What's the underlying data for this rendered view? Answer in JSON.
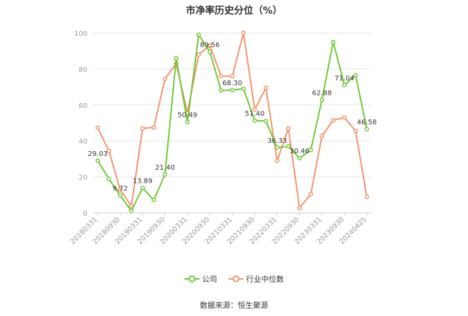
{
  "chart_data": {
    "type": "line",
    "title": "市净率历史分位（%）",
    "ylim": [
      0,
      100
    ],
    "yticks": [
      "0",
      "20",
      "40",
      "60",
      "80",
      "100"
    ],
    "grid": true,
    "legend_position": "bottom-center",
    "x": [
      "20180331",
      "",
      "20180930",
      "",
      "20190331",
      "",
      "20190930",
      "",
      "20200331",
      "",
      "20200930",
      "",
      "20210331",
      "",
      "20210930",
      "",
      "20220331",
      "",
      "20220930",
      "",
      "20230331",
      "",
      "20230930",
      "",
      "20240425"
    ],
    "x_tick_labels": [
      "20180331",
      "20180930",
      "20190331",
      "20190930",
      "20200331",
      "20200930",
      "20210331",
      "20210930",
      "20220331",
      "20220930",
      "20230331",
      "20230930",
      "20240425"
    ],
    "series": [
      {
        "name": "公司",
        "color": "#6cc735",
        "values": [
          29.03,
          18.9,
          9.72,
          1.2,
          13.89,
          7.2,
          21.4,
          86.0,
          50.49,
          99.0,
          89.56,
          68.0,
          68.3,
          69.0,
          51.4,
          51.0,
          36.33,
          37.0,
          30.46,
          35.0,
          62.88,
          95.0,
          71.04,
          76.5,
          46.58
        ]
      },
      {
        "name": "行业中位数",
        "color": "#f4916a",
        "values": [
          47.3,
          34.5,
          12.9,
          3.8,
          47.0,
          47.5,
          74.5,
          83.0,
          55.5,
          88.0,
          93.0,
          76.0,
          76.0,
          100.0,
          57.5,
          69.5,
          29.0,
          47.0,
          2.8,
          10.5,
          42.8,
          51.5,
          53.0,
          45.5,
          9.0
        ]
      }
    ],
    "data_labels": [
      {
        "series": 0,
        "index": 0,
        "text": "29.03"
      },
      {
        "series": 0,
        "index": 2,
        "text": "9.72"
      },
      {
        "series": 0,
        "index": 4,
        "text": "13.89"
      },
      {
        "series": 0,
        "index": 6,
        "text": "21.40"
      },
      {
        "series": 0,
        "index": 8,
        "text": "50.49"
      },
      {
        "series": 0,
        "index": 10,
        "text": "89.56"
      },
      {
        "series": 0,
        "index": 12,
        "text": "68.30"
      },
      {
        "series": 0,
        "index": 14,
        "text": "51.40"
      },
      {
        "series": 0,
        "index": 16,
        "text": "36.33"
      },
      {
        "series": 0,
        "index": 18,
        "text": "30.46"
      },
      {
        "series": 0,
        "index": 20,
        "text": "62.88"
      },
      {
        "series": 0,
        "index": 22,
        "text": "71.04"
      },
      {
        "series": 0,
        "index": 24,
        "text": "46.58"
      }
    ]
  },
  "source": "数据来源：恒生聚源"
}
